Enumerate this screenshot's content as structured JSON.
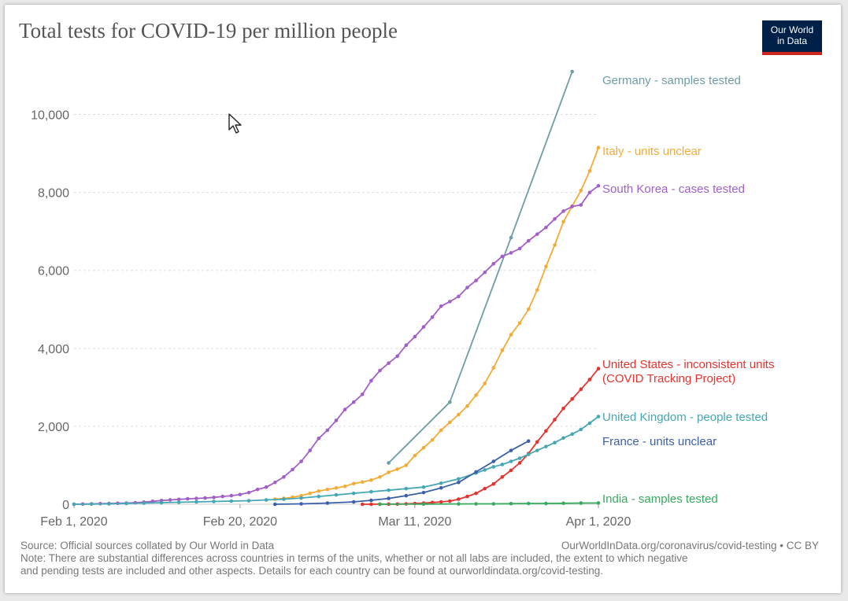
{
  "title": "Total tests for COVID-19 per million people",
  "logo": {
    "line1": "Our World",
    "line2": "in Data"
  },
  "footer": {
    "source": "Source: Official sources collated by Our World in Data",
    "link": "OurWorldInData.org/coronavirus/covid-testing • CC BY",
    "note_line1": "Note: There are substantial differences across countries in terms of the units, whether or not all labs are included, the extent to which negative",
    "note_line2": "and pending tests are included and other aspects. Details for each country can be found at ourworldindata.org/covid-testing."
  },
  "chart_data": {
    "type": "line",
    "title": "Total tests for COVID-19 per million people",
    "xlabel": "",
    "ylabel": "",
    "ylim": [
      0,
      11000
    ],
    "xlim": [
      0,
      60
    ],
    "x_unit": "days since Feb 1, 2020",
    "y_ticks": [
      0,
      2000,
      4000,
      6000,
      8000,
      10000
    ],
    "y_tick_labels": [
      "0",
      "2,000",
      "4,000",
      "6,000",
      "8,000",
      "10,000"
    ],
    "x_ticks": [
      0,
      19,
      39,
      60
    ],
    "x_tick_labels": [
      "Feb 1, 2020",
      "Feb 20, 2020",
      "Mar 11, 2020",
      "Apr 1, 2020"
    ],
    "series": [
      {
        "name": "Germany - samples tested",
        "color": "#6d9da6",
        "label_lines": [
          "Germany - samples tested"
        ],
        "points": [
          [
            36,
            1060
          ],
          [
            43,
            2620
          ],
          [
            50,
            6840
          ],
          [
            57,
            11100
          ]
        ]
      },
      {
        "name": "Italy - units unclear",
        "color": "#f4ab36",
        "label_lines": [
          "Italy - units unclear"
        ],
        "points": [
          [
            23,
            130
          ],
          [
            24,
            150
          ],
          [
            25,
            180
          ],
          [
            26,
            220
          ],
          [
            27,
            280
          ],
          [
            28,
            340
          ],
          [
            29,
            380
          ],
          [
            30,
            420
          ],
          [
            31,
            460
          ],
          [
            32,
            530
          ],
          [
            33,
            570
          ],
          [
            34,
            620
          ],
          [
            35,
            700
          ],
          [
            36,
            820
          ],
          [
            37,
            900
          ],
          [
            38,
            1000
          ],
          [
            39,
            1250
          ],
          [
            40,
            1450
          ],
          [
            41,
            1650
          ],
          [
            42,
            1900
          ],
          [
            43,
            2100
          ],
          [
            44,
            2300
          ],
          [
            45,
            2520
          ],
          [
            46,
            2800
          ],
          [
            47,
            3100
          ],
          [
            48,
            3500
          ],
          [
            49,
            3950
          ],
          [
            50,
            4350
          ],
          [
            51,
            4650
          ],
          [
            52,
            5000
          ],
          [
            53,
            5500
          ],
          [
            54,
            6100
          ],
          [
            55,
            6650
          ],
          [
            56,
            7250
          ],
          [
            57,
            7650
          ],
          [
            58,
            8050
          ],
          [
            59,
            8550
          ],
          [
            60,
            9150
          ]
        ]
      },
      {
        "name": "South Korea - cases tested",
        "color": "#a25fc8",
        "label_lines": [
          "South Korea - cases tested"
        ],
        "points": [
          [
            0,
            0
          ],
          [
            1,
            5
          ],
          [
            2,
            10
          ],
          [
            3,
            15
          ],
          [
            4,
            20
          ],
          [
            5,
            25
          ],
          [
            6,
            30
          ],
          [
            7,
            40
          ],
          [
            8,
            55
          ],
          [
            9,
            75
          ],
          [
            10,
            95
          ],
          [
            11,
            110
          ],
          [
            12,
            125
          ],
          [
            13,
            140
          ],
          [
            14,
            150
          ],
          [
            15,
            160
          ],
          [
            16,
            175
          ],
          [
            17,
            200
          ],
          [
            18,
            220
          ],
          [
            19,
            250
          ],
          [
            20,
            300
          ],
          [
            21,
            380
          ],
          [
            22,
            440
          ],
          [
            23,
            560
          ],
          [
            24,
            700
          ],
          [
            25,
            890
          ],
          [
            26,
            1100
          ],
          [
            27,
            1380
          ],
          [
            28,
            1690
          ],
          [
            29,
            1900
          ],
          [
            30,
            2150
          ],
          [
            31,
            2430
          ],
          [
            32,
            2620
          ],
          [
            33,
            2820
          ],
          [
            34,
            3170
          ],
          [
            35,
            3430
          ],
          [
            36,
            3620
          ],
          [
            37,
            3800
          ],
          [
            38,
            4080
          ],
          [
            39,
            4300
          ],
          [
            40,
            4550
          ],
          [
            41,
            4800
          ],
          [
            42,
            5080
          ],
          [
            43,
            5200
          ],
          [
            44,
            5330
          ],
          [
            45,
            5560
          ],
          [
            46,
            5740
          ],
          [
            47,
            5950
          ],
          [
            48,
            6170
          ],
          [
            49,
            6360
          ],
          [
            50,
            6450
          ],
          [
            51,
            6560
          ],
          [
            52,
            6760
          ],
          [
            53,
            6930
          ],
          [
            54,
            7100
          ],
          [
            55,
            7320
          ],
          [
            56,
            7520
          ],
          [
            57,
            7640
          ],
          [
            58,
            7680
          ],
          [
            59,
            8000
          ],
          [
            60,
            8170
          ]
        ]
      },
      {
        "name": "United States - inconsistent units (COVID Tracking Project)",
        "color": "#e3342f",
        "label_lines": [
          "United States - inconsistent units",
          "(COVID Tracking Project)"
        ],
        "points": [
          [
            33,
            0
          ],
          [
            34,
            0
          ],
          [
            35,
            2
          ],
          [
            36,
            3
          ],
          [
            37,
            5
          ],
          [
            38,
            10
          ],
          [
            39,
            20
          ],
          [
            40,
            30
          ],
          [
            41,
            45
          ],
          [
            42,
            60
          ],
          [
            43,
            80
          ],
          [
            44,
            130
          ],
          [
            45,
            200
          ],
          [
            46,
            280
          ],
          [
            47,
            400
          ],
          [
            48,
            520
          ],
          [
            49,
            700
          ],
          [
            50,
            870
          ],
          [
            51,
            1060
          ],
          [
            52,
            1300
          ],
          [
            53,
            1600
          ],
          [
            54,
            1880
          ],
          [
            55,
            2170
          ],
          [
            56,
            2460
          ],
          [
            57,
            2700
          ],
          [
            58,
            2950
          ],
          [
            59,
            3200
          ],
          [
            60,
            3480
          ]
        ]
      },
      {
        "name": "United Kingdom - people tested",
        "color": "#45a7b3",
        "label_lines": [
          "United Kingdom - people tested"
        ],
        "points": [
          [
            0,
            0
          ],
          [
            2,
            5
          ],
          [
            4,
            10
          ],
          [
            6,
            20
          ],
          [
            8,
            30
          ],
          [
            10,
            40
          ],
          [
            12,
            50
          ],
          [
            14,
            60
          ],
          [
            16,
            70
          ],
          [
            18,
            80
          ],
          [
            20,
            90
          ],
          [
            22,
            110
          ],
          [
            24,
            130
          ],
          [
            26,
            160
          ],
          [
            28,
            200
          ],
          [
            30,
            240
          ],
          [
            32,
            280
          ],
          [
            34,
            320
          ],
          [
            36,
            360
          ],
          [
            38,
            400
          ],
          [
            40,
            440
          ],
          [
            42,
            540
          ],
          [
            44,
            650
          ],
          [
            46,
            800
          ],
          [
            47,
            880
          ],
          [
            48,
            960
          ],
          [
            49,
            1020
          ],
          [
            50,
            1100
          ],
          [
            51,
            1180
          ],
          [
            52,
            1280
          ],
          [
            53,
            1380
          ],
          [
            54,
            1480
          ],
          [
            55,
            1580
          ],
          [
            56,
            1700
          ],
          [
            57,
            1800
          ],
          [
            58,
            1920
          ],
          [
            59,
            2080
          ],
          [
            60,
            2250
          ]
        ]
      },
      {
        "name": "France - units unclear",
        "color": "#3b5fa9",
        "label_lines": [
          "France - units unclear"
        ],
        "points": [
          [
            23,
            0
          ],
          [
            26,
            10
          ],
          [
            29,
            30
          ],
          [
            32,
            60
          ],
          [
            34,
            100
          ],
          [
            36,
            150
          ],
          [
            38,
            220
          ],
          [
            40,
            300
          ],
          [
            42,
            420
          ],
          [
            44,
            560
          ],
          [
            46,
            830
          ],
          [
            48,
            1100
          ],
          [
            50,
            1380
          ],
          [
            52,
            1620
          ]
        ]
      },
      {
        "name": "India - samples tested",
        "color": "#38aa5e",
        "label_lines": [
          "India - samples tested"
        ],
        "points": [
          [
            35,
            2
          ],
          [
            40,
            5
          ],
          [
            44,
            8
          ],
          [
            46,
            10
          ],
          [
            48,
            10
          ],
          [
            50,
            15
          ],
          [
            52,
            20
          ],
          [
            54,
            20
          ],
          [
            56,
            25
          ],
          [
            58,
            30
          ],
          [
            60,
            33
          ]
        ]
      }
    ]
  }
}
